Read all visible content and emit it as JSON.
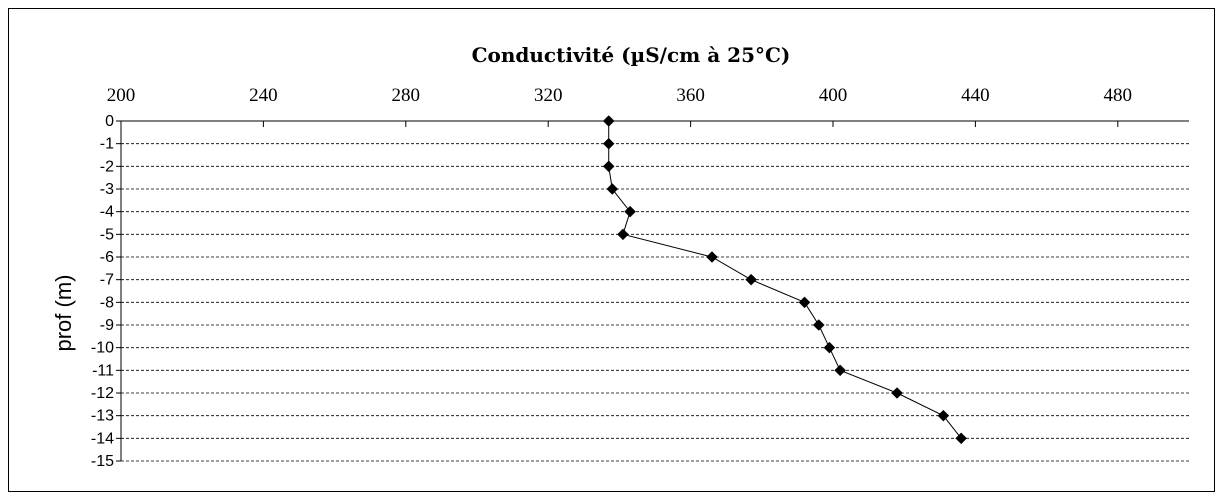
{
  "chart_data": {
    "type": "line",
    "title": "Conductivité (µS/cm à 25°C)",
    "xlabel": "",
    "ylabel": "prof (m)",
    "xlim": [
      200,
      500
    ],
    "ylim": [
      -15,
      0
    ],
    "x_axis_position": "top",
    "x_ticks": [
      200,
      240,
      280,
      320,
      360,
      400,
      440,
      480
    ],
    "y_ticks": [
      0,
      -1,
      -2,
      -3,
      -4,
      -5,
      -6,
      -7,
      -8,
      -9,
      -10,
      -11,
      -12,
      -13,
      -14,
      -15
    ],
    "grid": "horizontal-dashed",
    "legend": "none",
    "marker": "diamond",
    "line_color": "#000000",
    "marker_color": "#000000",
    "series": [
      {
        "x": [
          337,
          337,
          337,
          338,
          343,
          341,
          366,
          377,
          392,
          396,
          399,
          402,
          418,
          431,
          436
        ],
        "y": [
          0,
          -1,
          -2,
          -3,
          -4,
          -5,
          -6,
          -7,
          -8,
          -9,
          -10,
          -11,
          -12,
          -13,
          -14
        ]
      }
    ]
  }
}
